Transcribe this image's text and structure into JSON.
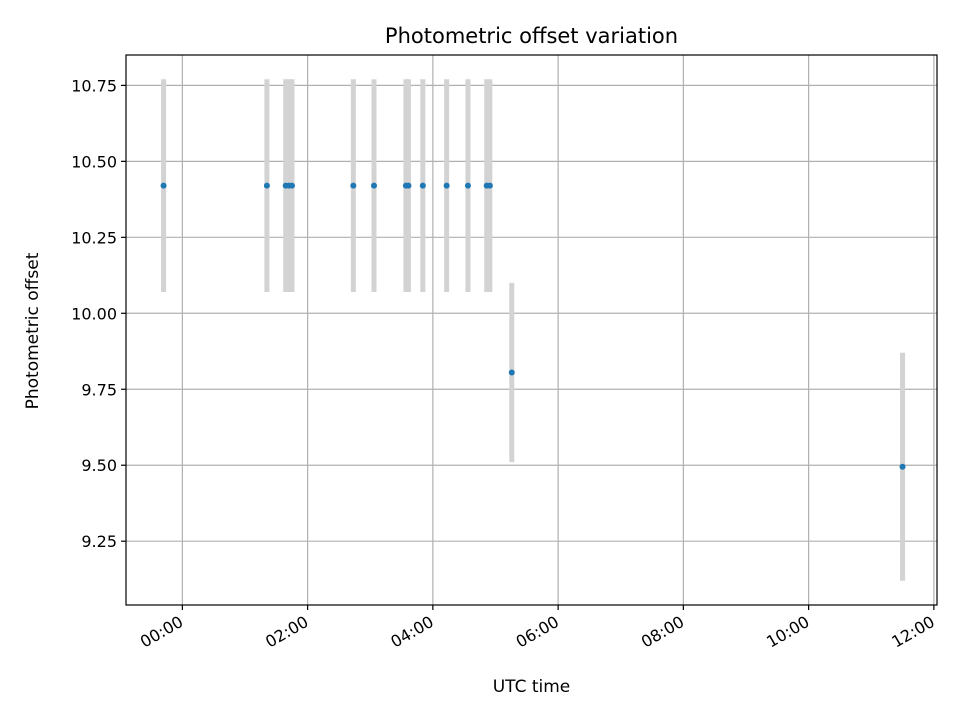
{
  "chart_data": {
    "type": "scatter",
    "title": "Photometric offset variation",
    "xlabel": "UTC time",
    "ylabel": "Photometric offset",
    "x_unit": "hours",
    "xlim": [
      -0.9,
      12.05
    ],
    "ylim": [
      9.04,
      10.85
    ],
    "x_ticks": [
      {
        "value": 0,
        "label": "00:00"
      },
      {
        "value": 2,
        "label": "02:00"
      },
      {
        "value": 4,
        "label": "04:00"
      },
      {
        "value": 6,
        "label": "06:00"
      },
      {
        "value": 8,
        "label": "08:00"
      },
      {
        "value": 10,
        "label": "10:00"
      },
      {
        "value": 12,
        "label": "12:00"
      }
    ],
    "y_ticks": [
      {
        "value": 9.25,
        "label": "9.25"
      },
      {
        "value": 9.5,
        "label": "9.50"
      },
      {
        "value": 9.75,
        "label": "9.75"
      },
      {
        "value": 10.0,
        "label": "10.00"
      },
      {
        "value": 10.25,
        "label": "10.25"
      },
      {
        "value": 10.5,
        "label": "10.50"
      },
      {
        "value": 10.75,
        "label": "10.75"
      }
    ],
    "grid": true,
    "marker_color": "#1f77b4",
    "errorbar_color": "#d3d3d3",
    "points": [
      {
        "x": -0.3,
        "y": 10.42,
        "err": 0.35
      },
      {
        "x": 1.35,
        "y": 10.42,
        "err": 0.35
      },
      {
        "x": 1.65,
        "y": 10.42,
        "err": 0.35
      },
      {
        "x": 1.7,
        "y": 10.42,
        "err": 0.35
      },
      {
        "x": 1.75,
        "y": 10.42,
        "err": 0.35
      },
      {
        "x": 2.73,
        "y": 10.42,
        "err": 0.35
      },
      {
        "x": 3.06,
        "y": 10.42,
        "err": 0.35
      },
      {
        "x": 3.57,
        "y": 10.42,
        "err": 0.35
      },
      {
        "x": 3.61,
        "y": 10.42,
        "err": 0.35
      },
      {
        "x": 3.84,
        "y": 10.42,
        "err": 0.35
      },
      {
        "x": 4.22,
        "y": 10.42,
        "err": 0.35
      },
      {
        "x": 4.56,
        "y": 10.42,
        "err": 0.35
      },
      {
        "x": 4.86,
        "y": 10.42,
        "err": 0.35
      },
      {
        "x": 4.91,
        "y": 10.42,
        "err": 0.35
      },
      {
        "x": 5.26,
        "y": 9.805,
        "err": 0.295
      },
      {
        "x": 11.5,
        "y": 9.495,
        "err": 0.375
      }
    ]
  }
}
